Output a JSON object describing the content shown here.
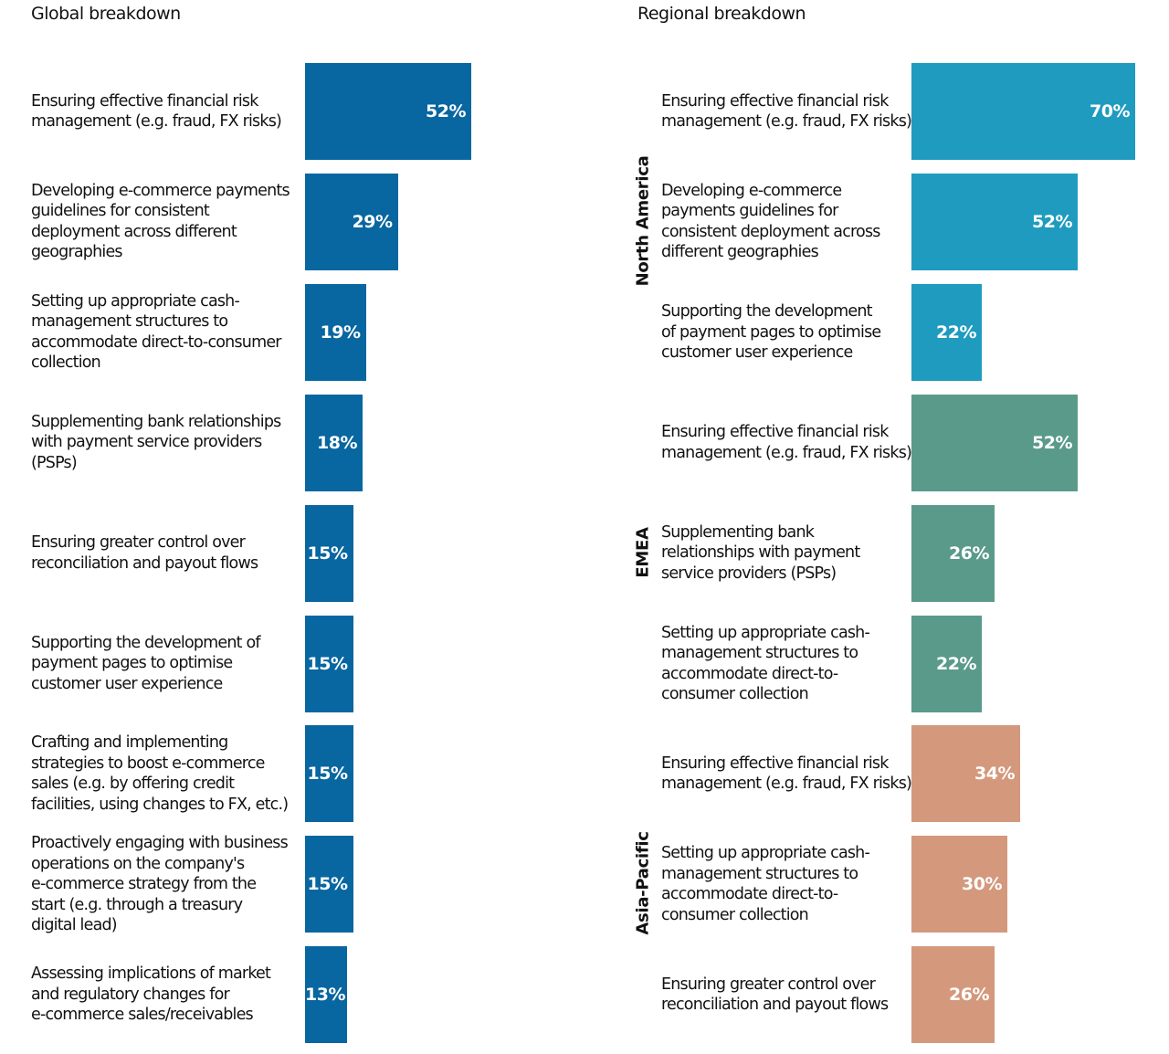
{
  "chart_data": [
    {
      "type": "bar",
      "orientation": "horizontal",
      "title": "Global breakdown",
      "unit": "%",
      "xlim": [
        0,
        70
      ],
      "color": "#0866a0",
      "categories": [
        "Ensuring effective financial risk\nmanagement (e.g. fraud, FX risks)",
        "Developing e-commerce payments\nguidelines for consistent\ndeployment across different\ngeographies",
        "Setting up appropriate cash-\nmanagement structures to\naccommodate direct-to-consumer\ncollection",
        "Supplementing bank relationships\nwith payment service providers\n(PSPs)",
        "Ensuring greater control over\nreconciliation and payout flows",
        "Supporting the development of\npayment pages to optimise\ncustomer user experience",
        "Crafting and implementing\nstrategies to boost e-commerce\nsales (e.g. by offering credit\nfacilities, using changes to FX, etc.)",
        "Proactively engaging with business\noperations on the company's\ne-commerce strategy from the\nstart (e.g. through a treasury\ndigital lead)",
        "Assessing implications of market\nand regulatory changes for\ne-commerce sales/receivables"
      ],
      "values": [
        52,
        29,
        19,
        18,
        15,
        15,
        15,
        15,
        13
      ],
      "value_labels": [
        "52%",
        "29%",
        "19%",
        "18%",
        "15%",
        "15%",
        "15%",
        "15%",
        "13%"
      ]
    },
    {
      "type": "bar",
      "orientation": "horizontal",
      "title": "Regional breakdown",
      "unit": "%",
      "xlim": [
        0,
        70
      ],
      "groups": [
        {
          "name": "North America",
          "color": "#1f9bbf",
          "categories": [
            "Ensuring effective financial risk\nmanagement (e.g. fraud, FX risks)",
            "Developing e-commerce\npayments guidelines for\nconsistent deployment across\ndifferent geographies",
            "Supporting the development\nof payment pages to optimise\ncustomer user experience"
          ],
          "values": [
            70,
            52,
            22
          ],
          "value_labels": [
            "70%",
            "52%",
            "22%"
          ]
        },
        {
          "name": "EMEA",
          "color": "#5a9a8b",
          "categories": [
            "Ensuring effective financial risk\nmanagement (e.g. fraud, FX risks)",
            "Supplementing bank\nrelationships with payment\nservice providers (PSPs)",
            "Setting up appropriate cash-\nmanagement structures to\naccommodate direct-to-\nconsumer collection"
          ],
          "values": [
            52,
            26,
            22
          ],
          "value_labels": [
            "52%",
            "26%",
            "22%"
          ]
        },
        {
          "name": "Asia-Pacific",
          "color": "#d4987c",
          "categories": [
            "Ensuring effective financial risk\nmanagement (e.g. fraud, FX risks)",
            "Setting up appropriate cash-\nmanagement structures to\naccommodate direct-to-\nconsumer collection",
            "Ensuring greater control over\nreconciliation and payout flows"
          ],
          "values": [
            34,
            30,
            26
          ],
          "value_labels": [
            "34%",
            "30%",
            "26%"
          ]
        }
      ]
    }
  ]
}
